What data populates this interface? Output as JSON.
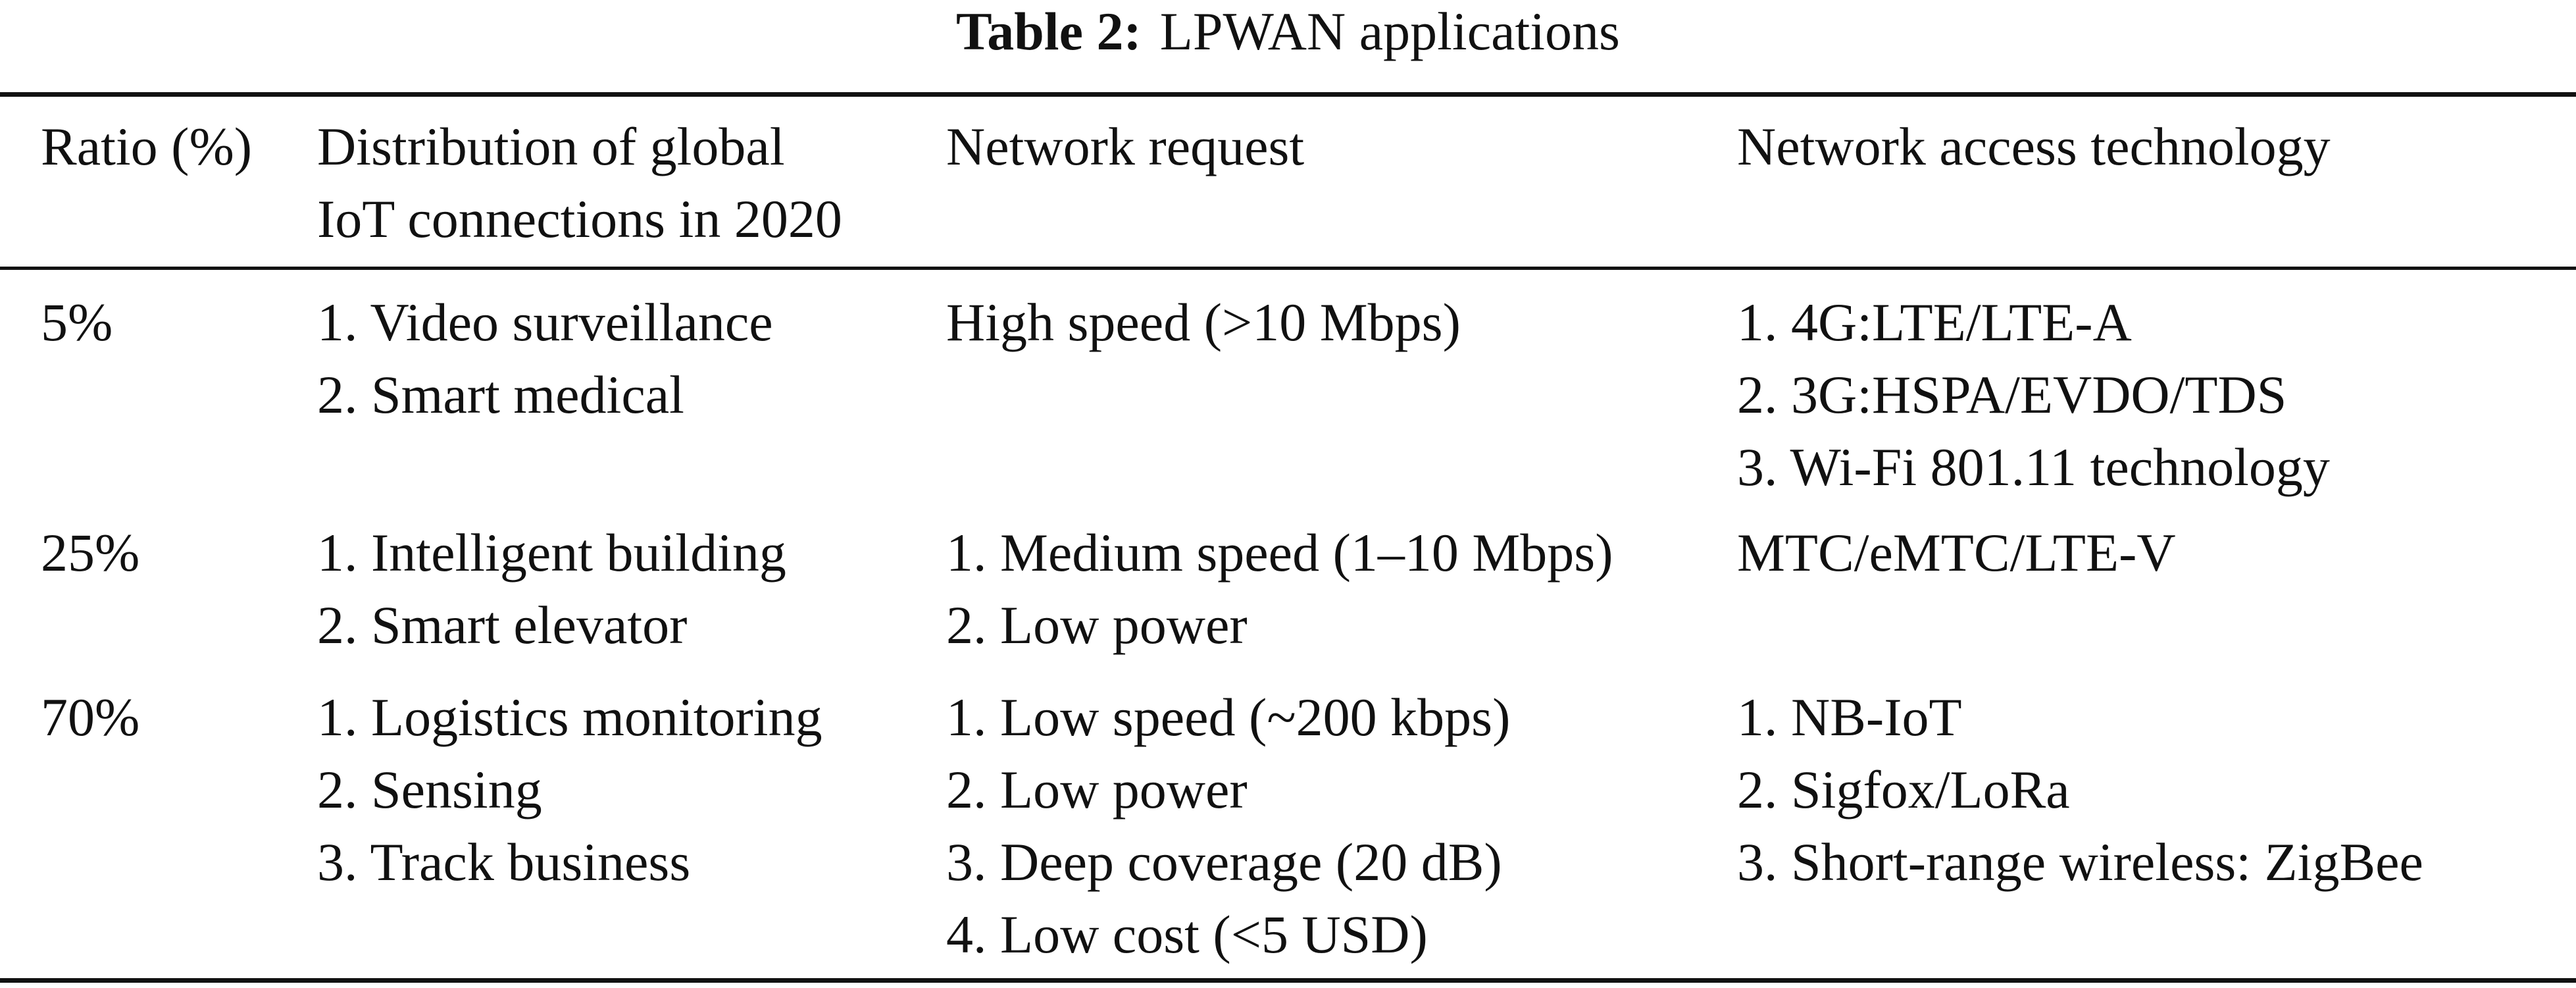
{
  "caption": {
    "label": "Table 2:",
    "text": "LPWAN applications"
  },
  "table": {
    "headers": [
      [
        "Ratio (%)"
      ],
      [
        "Distribution of global",
        "IoT connections in 2020"
      ],
      [
        "Network request"
      ],
      [
        "Network access technology"
      ]
    ],
    "rows": [
      {
        "ratio": [
          "5%"
        ],
        "distribution": [
          "1. Video surveillance",
          "2. Smart medical"
        ],
        "request": [
          "High speed (>10 Mbps)"
        ],
        "technology": [
          "1. 4G:LTE/LTE-A",
          "2. 3G:HSPA/EVDO/TDS",
          "3. Wi-Fi 801.11 technology"
        ]
      },
      {
        "ratio": [
          "25%"
        ],
        "distribution": [
          "1. Intelligent building",
          "2. Smart elevator"
        ],
        "request": [
          "1. Medium speed (1–10 Mbps)",
          "2. Low power"
        ],
        "technology": [
          "MTC/eMTC/LTE-V"
        ]
      },
      {
        "ratio": [
          "70%"
        ],
        "distribution": [
          "1. Logistics monitoring",
          "2. Sensing",
          "3. Track business"
        ],
        "request": [
          "1. Low speed (~200 kbps)",
          "2. Low power",
          "3. Deep coverage (20 dB)",
          "4. Low cost (<5 USD)"
        ],
        "technology": [
          "1. NB-IoT",
          "2. Sigfox/LoRa",
          "3. Short-range wireless: ZigBee"
        ]
      }
    ]
  }
}
